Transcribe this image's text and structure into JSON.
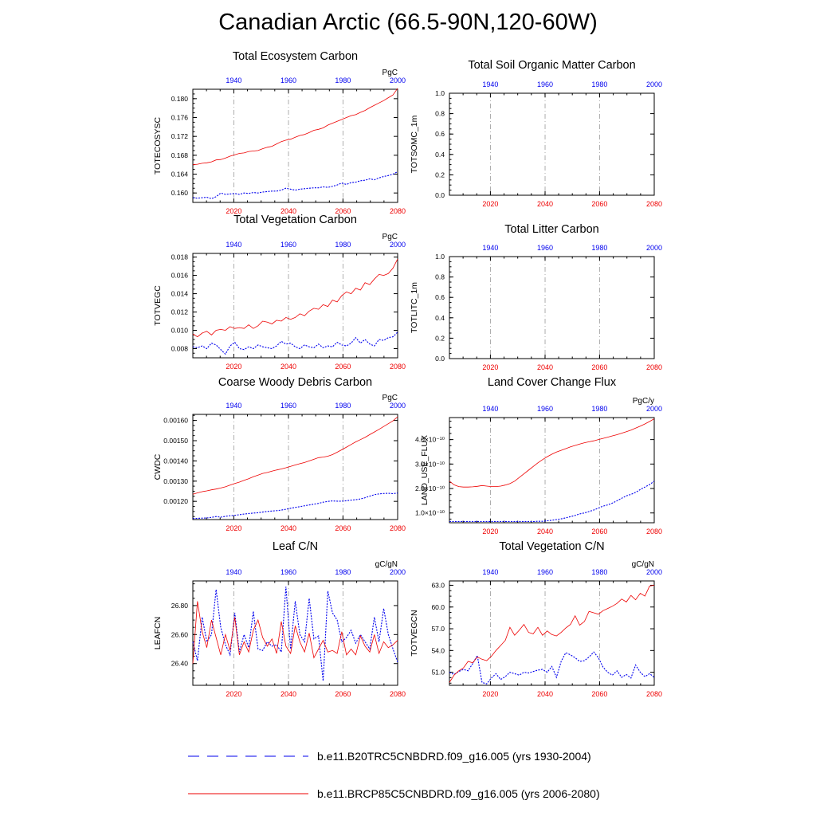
{
  "title": "Canadian Arctic (66.5-90N,120-60W)",
  "colors": {
    "blue": "#0000ee",
    "red": "#ee0000",
    "axis": "#000000",
    "grid": "#999999"
  },
  "legend": [
    {
      "label": "b.e11.B20TRC5CNBDRD.f09_g16.005 (yrs 1930-2004)",
      "color": "#0000ee",
      "dash": true
    },
    {
      "label": "b.e11.BRCP85C5CNBDRD.f09_g16.005 (yrs 2006-2080)",
      "color": "#ee0000",
      "dash": false
    }
  ],
  "chart_data": [
    {
      "type": "line",
      "id": "totecosysc",
      "title": "Total Ecosystem Carbon",
      "ylabel": "TOTECOSYSC",
      "units": "PgC",
      "bottom_ticks": [
        "2020",
        "2040",
        "2060",
        "2080"
      ],
      "top_ticks": [
        "1940",
        "1960",
        "1980",
        "2000"
      ],
      "ylim": [
        0.158,
        0.182
      ],
      "yticks": [
        0.16,
        0.164,
        0.168,
        0.172,
        0.176,
        0.18
      ],
      "ytick_labels": [
        "0.160",
        "0.164",
        "0.168",
        "0.172",
        "0.176",
        "0.180"
      ],
      "series": [
        {
          "name": "blue",
          "values": [
            0.159,
            0.1589,
            0.159,
            0.1591,
            0.1588,
            0.1592,
            0.16,
            0.1597,
            0.1598,
            0.1599,
            0.1597,
            0.16,
            0.1599,
            0.1601,
            0.16,
            0.1602,
            0.1603,
            0.1604,
            0.1604,
            0.1606,
            0.161,
            0.1608,
            0.1606,
            0.1608,
            0.1609,
            0.161,
            0.1611,
            0.1611,
            0.1613,
            0.1612,
            0.1614,
            0.1617,
            0.1621,
            0.1618,
            0.1622,
            0.1623,
            0.1626,
            0.1627,
            0.163,
            0.1628,
            0.1632,
            0.1635,
            0.1637,
            0.164,
            0.1645
          ]
        },
        {
          "name": "red",
          "values": [
            0.166,
            0.1661,
            0.1663,
            0.1664,
            0.1666,
            0.167,
            0.1671,
            0.1674,
            0.1678,
            0.1681,
            0.1684,
            0.1685,
            0.1688,
            0.1689,
            0.169,
            0.1694,
            0.1697,
            0.1699,
            0.1704,
            0.1709,
            0.1712,
            0.1714,
            0.1718,
            0.1722,
            0.1724,
            0.1728,
            0.1733,
            0.1735,
            0.1738,
            0.1744,
            0.1748,
            0.1752,
            0.1756,
            0.176,
            0.1764,
            0.1766,
            0.1771,
            0.1775,
            0.1781,
            0.1786,
            0.1791,
            0.1796,
            0.1802,
            0.1808,
            0.1822
          ]
        }
      ]
    },
    {
      "type": "line",
      "id": "totsomc",
      "title": "Total Soil Organic Matter Carbon",
      "ylabel": "TOTSOMC_1m",
      "units": "",
      "bottom_ticks": [
        "2020",
        "2040",
        "2060",
        "2080"
      ],
      "top_ticks": [
        "1940",
        "1960",
        "1980",
        "2000"
      ],
      "ylim": [
        0.0,
        1.0
      ],
      "yticks": [
        0.0,
        0.2,
        0.4,
        0.6,
        0.8,
        1.0
      ],
      "ytick_labels": [
        "0.0",
        "0.2",
        "0.4",
        "0.6",
        "0.8",
        "1.0"
      ],
      "series": []
    },
    {
      "type": "line",
      "id": "totvegc",
      "title": "Total Vegetation Carbon",
      "ylabel": "TOTVEGC",
      "units": "PgC",
      "bottom_ticks": [
        "2020",
        "2040",
        "2060",
        "2080"
      ],
      "top_ticks": [
        "1940",
        "1960",
        "1980",
        "2000"
      ],
      "ylim": [
        0.007,
        0.0184
      ],
      "yticks": [
        0.008,
        0.01,
        0.012,
        0.014,
        0.016,
        0.018
      ],
      "ytick_labels": [
        "0.008",
        "0.010",
        "0.012",
        "0.014",
        "0.016",
        "0.018"
      ],
      "series": [
        {
          "name": "blue",
          "values": [
            0.0082,
            0.0081,
            0.0083,
            0.008,
            0.0086,
            0.0084,
            0.0079,
            0.0074,
            0.0083,
            0.0087,
            0.008,
            0.0079,
            0.0082,
            0.008,
            0.0084,
            0.0082,
            0.0081,
            0.008,
            0.0083,
            0.0088,
            0.0085,
            0.0086,
            0.0082,
            0.008,
            0.0084,
            0.0082,
            0.0081,
            0.0085,
            0.0081,
            0.0083,
            0.0082,
            0.0087,
            0.0084,
            0.0083,
            0.0086,
            0.0092,
            0.0086,
            0.009,
            0.0085,
            0.0083,
            0.009,
            0.0089,
            0.0092,
            0.0093,
            0.0098
          ]
        },
        {
          "name": "red",
          "values": [
            0.0096,
            0.0093,
            0.0097,
            0.0099,
            0.0095,
            0.01,
            0.0101,
            0.01,
            0.0104,
            0.0102,
            0.0103,
            0.0102,
            0.0106,
            0.0102,
            0.0105,
            0.011,
            0.0109,
            0.0107,
            0.0111,
            0.011,
            0.0114,
            0.0112,
            0.0114,
            0.0118,
            0.0116,
            0.0121,
            0.0124,
            0.0123,
            0.0128,
            0.0126,
            0.0133,
            0.0131,
            0.0138,
            0.0142,
            0.014,
            0.0146,
            0.0144,
            0.0152,
            0.015,
            0.0156,
            0.0161,
            0.016,
            0.0162,
            0.0168,
            0.0178
          ]
        }
      ]
    },
    {
      "type": "line",
      "id": "totlitc",
      "title": "Total Litter Carbon",
      "ylabel": "TOTLITC_1m",
      "units": "",
      "bottom_ticks": [
        "2020",
        "2040",
        "2060",
        "2080"
      ],
      "top_ticks": [
        "1940",
        "1960",
        "1980",
        "2000"
      ],
      "ylim": [
        0.0,
        1.0
      ],
      "yticks": [
        0.0,
        0.2,
        0.4,
        0.6,
        0.8,
        1.0
      ],
      "ytick_labels": [
        "0.0",
        "0.2",
        "0.4",
        "0.6",
        "0.8",
        "1.0"
      ],
      "series": []
    },
    {
      "type": "line",
      "id": "cwdc",
      "title": "Coarse Woody Debris Carbon",
      "ylabel": "CWDC",
      "units": "PgC",
      "bottom_ticks": [
        "2020",
        "2040",
        "2060",
        "2080"
      ],
      "top_ticks": [
        "1940",
        "1960",
        "1980",
        "2000"
      ],
      "ylim": [
        0.00111,
        0.00163
      ],
      "yticks": [
        0.0012,
        0.0013,
        0.0014,
        0.0015,
        0.0016
      ],
      "ytick_labels": [
        "0.00120",
        "0.00130",
        "0.00140",
        "0.00150",
        "0.00160"
      ],
      "series": [
        {
          "name": "blue",
          "values": [
            0.001115,
            0.001116,
            0.001117,
            0.001118,
            0.001121,
            0.001125,
            0.001122,
            0.001126,
            0.001129,
            0.001131,
            0.001134,
            0.001137,
            0.00114,
            0.001142,
            0.001144,
            0.001147,
            0.00115,
            0.001152,
            0.001154,
            0.001157,
            0.001161,
            0.001166,
            0.00117,
            0.001174,
            0.001178,
            0.001182,
            0.001186,
            0.00119,
            0.001196,
            0.0012,
            0.001202,
            0.001201,
            0.001201,
            0.001203,
            0.001206,
            0.001208,
            0.001212,
            0.001218,
            0.001226,
            0.001233,
            0.001237,
            0.001239,
            0.00124,
            0.001238,
            0.001241
          ]
        },
        {
          "name": "red",
          "values": [
            0.001235,
            0.001242,
            0.001248,
            0.001252,
            0.001257,
            0.001261,
            0.001266,
            0.001272,
            0.00128,
            0.001288,
            0.001295,
            0.001304,
            0.001312,
            0.001322,
            0.00133,
            0.001338,
            0.001343,
            0.001349,
            0.001355,
            0.00136,
            0.001366,
            0.001373,
            0.00138,
            0.001386,
            0.001392,
            0.0014,
            0.001408,
            0.001416,
            0.001419,
            0.001423,
            0.001431,
            0.001443,
            0.001455,
            0.001468,
            0.001481,
            0.001494,
            0.001505,
            0.001516,
            0.00153,
            0.001543,
            0.001556,
            0.00157,
            0.001584,
            0.001598,
            0.001618
          ]
        }
      ]
    },
    {
      "type": "line",
      "id": "landuseflux",
      "title": "Land Cover Change Flux",
      "ylabel": "LAND_USE_FLUX",
      "units": "PgC/y",
      "bottom_ticks": [
        "2020",
        "2040",
        "2060",
        "2080"
      ],
      "top_ticks": [
        "1940",
        "1960",
        "1980",
        "2000"
      ],
      "ylim": [
        0.6,
        4.9
      ],
      "yticks": [
        1.0,
        2.0,
        3.0,
        4.0
      ],
      "ytick_labels": [
        "1.0×10⁻¹⁰",
        "2.0×10⁻¹⁰",
        "3.0×10⁻¹⁰",
        "4.0×10⁻¹⁰"
      ],
      "series": [
        {
          "name": "blue",
          "values": [
            0.65,
            0.65,
            0.65,
            0.65,
            0.65,
            0.65,
            0.65,
            0.65,
            0.65,
            0.65,
            0.65,
            0.65,
            0.65,
            0.65,
            0.65,
            0.65,
            0.65,
            0.65,
            0.65,
            0.66,
            0.66,
            0.68,
            0.7,
            0.73,
            0.76,
            0.8,
            0.85,
            0.9,
            0.96,
            1.0,
            1.06,
            1.12,
            1.2,
            1.28,
            1.33,
            1.4,
            1.5,
            1.6,
            1.7,
            1.76,
            1.84,
            1.96,
            2.06,
            2.16,
            2.3
          ]
        },
        {
          "name": "red",
          "values": [
            2.3,
            2.15,
            2.08,
            2.06,
            2.06,
            2.07,
            2.09,
            2.12,
            2.1,
            2.08,
            2.08,
            2.1,
            2.14,
            2.2,
            2.3,
            2.45,
            2.6,
            2.75,
            2.9,
            3.05,
            3.18,
            3.3,
            3.4,
            3.49,
            3.56,
            3.63,
            3.7,
            3.76,
            3.82,
            3.87,
            3.91,
            3.95,
            4.0,
            4.05,
            4.1,
            4.15,
            4.2,
            4.26,
            4.32,
            4.39,
            4.47,
            4.55,
            4.64,
            4.74,
            4.85
          ]
        }
      ]
    },
    {
      "type": "line",
      "id": "leafcn",
      "title": "Leaf C/N",
      "ylabel": "LEAFCN",
      "units": "gC/gN",
      "bottom_ticks": [
        "2020",
        "2040",
        "2060",
        "2080"
      ],
      "top_ticks": [
        "1940",
        "1960",
        "1980",
        "2000"
      ],
      "ylim": [
        26.25,
        26.97
      ],
      "yticks": [
        26.4,
        26.6,
        26.8
      ],
      "ytick_labels": [
        "26.40",
        "26.60",
        "26.80"
      ],
      "series": [
        {
          "name": "blue",
          "values": [
            26.55,
            26.42,
            26.72,
            26.55,
            26.6,
            26.91,
            26.65,
            26.53,
            26.46,
            26.75,
            26.48,
            26.6,
            26.51,
            26.76,
            26.5,
            26.49,
            26.55,
            26.52,
            26.53,
            26.48,
            26.93,
            26.5,
            26.83,
            26.6,
            26.55,
            26.85,
            26.57,
            26.59,
            26.28,
            26.9,
            26.75,
            26.7,
            26.55,
            26.58,
            26.63,
            26.54,
            26.6,
            26.55,
            26.5,
            26.72,
            26.55,
            26.78,
            26.6,
            26.5,
            26.41
          ]
        },
        {
          "name": "red",
          "values": [
            26.4,
            26.83,
            26.62,
            26.51,
            26.7,
            26.58,
            26.46,
            26.6,
            26.49,
            26.72,
            26.46,
            26.55,
            26.48,
            26.63,
            26.7,
            26.58,
            26.52,
            26.57,
            26.47,
            26.69,
            26.52,
            26.47,
            26.66,
            26.55,
            26.48,
            26.61,
            26.44,
            26.5,
            26.56,
            26.48,
            26.49,
            26.47,
            26.62,
            26.46,
            26.5,
            26.46,
            26.59,
            26.52,
            26.48,
            26.6,
            26.47,
            26.55,
            26.51,
            26.53,
            26.56
          ]
        }
      ]
    },
    {
      "type": "line",
      "id": "totvegcn",
      "title": "Total Vegetation C/N",
      "ylabel": "TOTVEGCN",
      "units": "gC/gN",
      "bottom_ticks": [
        "2020",
        "2040",
        "2060",
        "2080"
      ],
      "top_ticks": [
        "1940",
        "1960",
        "1980",
        "2000"
      ],
      "ylim": [
        49.2,
        63.6
      ],
      "yticks": [
        51.0,
        54.0,
        57.0,
        60.0,
        63.0
      ],
      "ytick_labels": [
        "51.0",
        "54.0",
        "57.0",
        "60.0",
        "63.0"
      ],
      "series": [
        {
          "name": "blue",
          "values": [
            51.0,
            50.7,
            51.1,
            51.4,
            51.2,
            52.2,
            53.3,
            49.6,
            49.4,
            50.2,
            50.8,
            50.0,
            50.4,
            51.0,
            50.8,
            50.6,
            51.0,
            50.9,
            51.1,
            51.3,
            51.4,
            51.0,
            51.8,
            50.3,
            52.5,
            53.7,
            53.4,
            53.0,
            52.5,
            52.6,
            53.1,
            53.8,
            53.0,
            51.7,
            51.0,
            50.6,
            51.2,
            50.3,
            50.7,
            50.2,
            52.0,
            51.0,
            50.4,
            50.8,
            50.3
          ]
        },
        {
          "name": "red",
          "values": [
            49.6,
            50.6,
            51.2,
            51.6,
            52.5,
            52.3,
            53.1,
            52.8,
            52.6,
            53.2,
            54.0,
            54.7,
            55.4,
            57.2,
            56.1,
            56.8,
            57.6,
            56.5,
            56.3,
            57.2,
            56.1,
            56.7,
            56.2,
            56.0,
            56.5,
            57.1,
            57.6,
            58.8,
            57.5,
            58.0,
            59.4,
            59.2,
            59.0,
            59.5,
            59.8,
            60.1,
            60.5,
            61.1,
            60.7,
            61.6,
            61.0,
            61.9,
            61.5,
            62.9,
            63.0
          ]
        }
      ]
    }
  ]
}
